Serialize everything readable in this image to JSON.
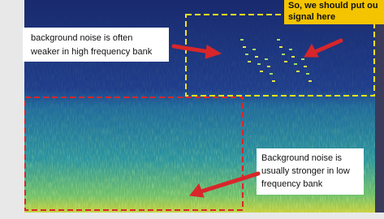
{
  "annotations": {
    "top_note": [
      "background noise is often",
      "weaker in high frequency bank"
    ],
    "bottom_note": [
      "Background noise is",
      "usually stronger in low",
      "frequency bank"
    ],
    "signal_note": [
      "So, we should put ou",
      "signal here"
    ]
  }
}
